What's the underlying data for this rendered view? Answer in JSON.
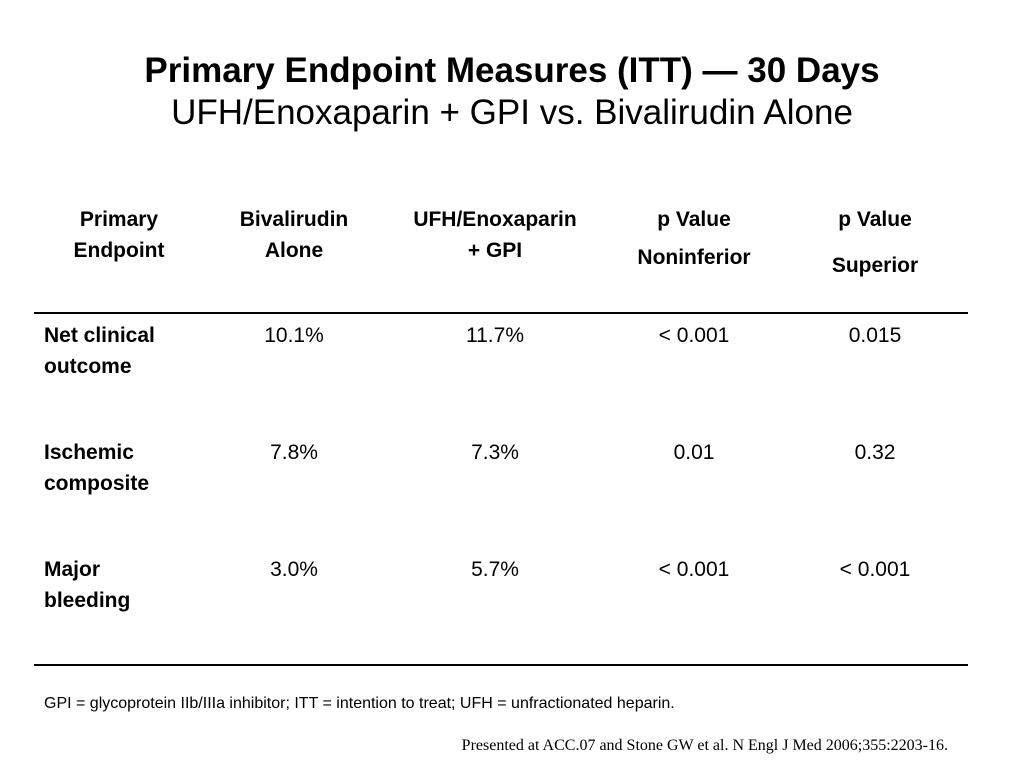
{
  "title": "Primary Endpoint Measures (ITT) — 30 Days",
  "subtitle": "UFH/Enoxaparin + GPI vs. Bivalirudin Alone",
  "chart_data": {
    "type": "table",
    "columns": [
      {
        "lines": [
          "Primary",
          "Endpoint"
        ]
      },
      {
        "lines": [
          "Bivalirudin",
          "Alone"
        ]
      },
      {
        "lines": [
          "UFH/Enoxaparin",
          "+ GPI"
        ]
      },
      {
        "lines": [
          "p Value",
          "Noninferior"
        ]
      },
      {
        "lines": [
          "p Value",
          "Superior"
        ]
      }
    ],
    "rows": [
      {
        "label": [
          "Net clinical",
          "outcome"
        ],
        "values": [
          "10.1%",
          "11.7%",
          "< 0.001",
          "0.015"
        ]
      },
      {
        "label": [
          "Ischemic",
          "composite"
        ],
        "values": [
          "7.8%",
          "7.3%",
          "0.01",
          "0.32"
        ]
      },
      {
        "label": [
          "Major",
          "bleeding"
        ],
        "values": [
          "3.0%",
          "5.7%",
          "< 0.001",
          "< 0.001"
        ]
      }
    ]
  },
  "footnote": "GPI = glycoprotein IIb/IIIa inhibitor; ITT = intention to treat; UFH = unfractionated heparin.",
  "citation": "Presented at ACC.07 and Stone GW et al. N Engl J Med 2006;355:2203-16."
}
